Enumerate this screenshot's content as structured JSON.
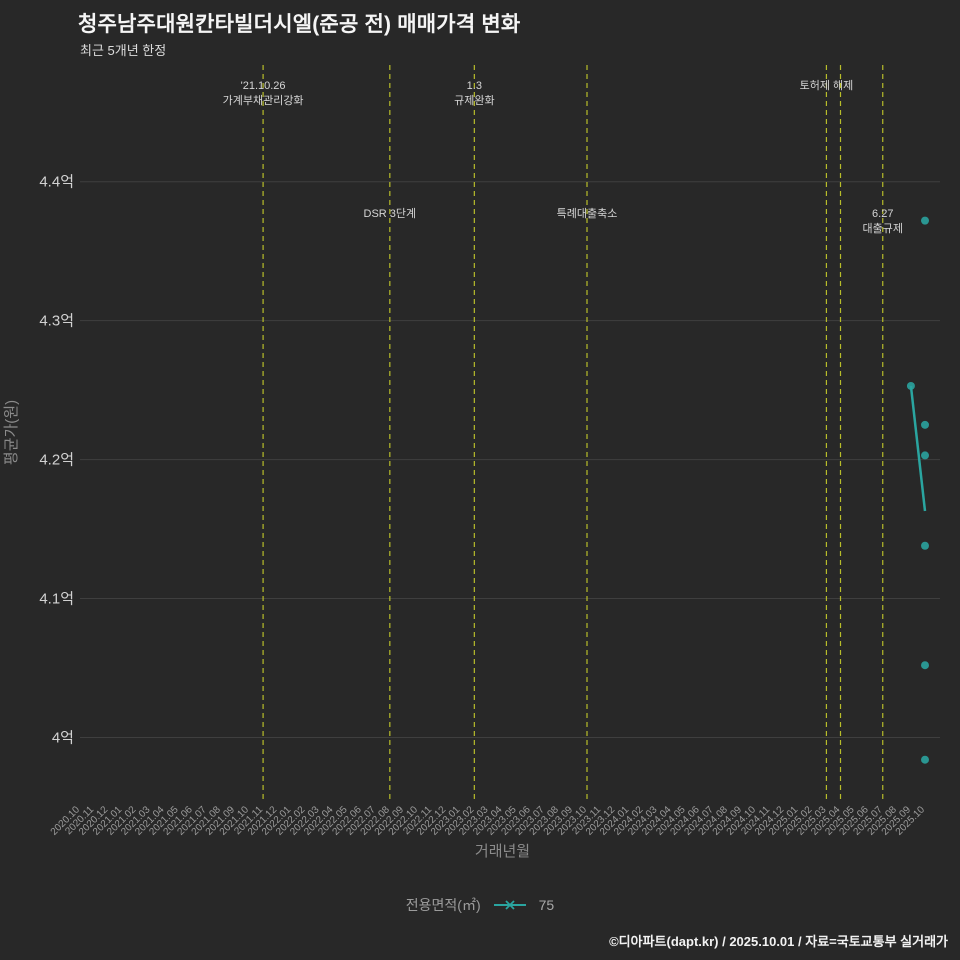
{
  "page": {
    "title": "청주남주대원칸타빌더시엘(준공 전) 매매가격 변화",
    "subtitle": "최근 5개년 한정",
    "footer": "©디아파트(dapt.kr) / 2025.10.01 / 자료=국토교통부 실거래가"
  },
  "legend": {
    "label": "전용면적(㎡)",
    "series_name": "75"
  },
  "colors": {
    "background": "#282828",
    "series": "#2aa5a0",
    "event_line": "#b8bd2a",
    "grid": "#3f3f3f",
    "tick": "#d2d2d2",
    "xtick": "#9c9c9c",
    "axis_label": "#8b8b8b",
    "annotation": "#d6d6d6"
  },
  "chart_data": {
    "type": "scatter",
    "title": "청주남주대원칸타빌더시엘(준공 전) 매매가격 변화",
    "subtitle": "최근 5개년 한정",
    "xlabel": "거래년월",
    "ylabel": "평균가(원)",
    "unit": "억",
    "ylim": [
      3.955,
      4.484
    ],
    "grid": "horizontal-only",
    "legend_position": "bottom-center",
    "yticks": [
      {
        "value": 4.4,
        "label": "4.4억"
      },
      {
        "value": 4.3,
        "label": "4.3억"
      },
      {
        "value": 4.2,
        "label": "4.2억"
      },
      {
        "value": 4.1,
        "label": "4.1억"
      },
      {
        "value": 4.0,
        "label": "4억"
      }
    ],
    "categories": [
      "2020.10",
      "2020.11",
      "2020.12",
      "2021.01",
      "2021.02",
      "2021.03",
      "2021.04",
      "2021.05",
      "2021.06",
      "2021.07",
      "2021.08",
      "2021.09",
      "2021.10",
      "2021.11",
      "2021.12",
      "2022.01",
      "2022.02",
      "2022.03",
      "2022.04",
      "2022.05",
      "2022.06",
      "2022.07",
      "2022.08",
      "2022.09",
      "2022.10",
      "2022.11",
      "2022.12",
      "2023.01",
      "2023.02",
      "2023.03",
      "2023.04",
      "2023.05",
      "2023.06",
      "2023.07",
      "2023.08",
      "2023.09",
      "2023.10",
      "2023.11",
      "2023.12",
      "2024.01",
      "2024.02",
      "2024.03",
      "2024.04",
      "2024.05",
      "2024.06",
      "2024.07",
      "2024.08",
      "2024.09",
      "2024.10",
      "2024.11",
      "2024.12",
      "2025.01",
      "2025.02",
      "2025.03",
      "2025.04",
      "2025.05",
      "2025.06",
      "2025.07",
      "2025.08",
      "2025.09",
      "2025.10"
    ],
    "series": [
      {
        "name": "75",
        "type": "scatter",
        "points": [
          [
            "2025.10",
            4.372
          ],
          [
            "2025.09",
            4.253
          ],
          [
            "2025.10",
            4.225
          ],
          [
            "2025.10",
            4.203
          ],
          [
            "2025.10",
            4.138
          ],
          [
            "2025.10",
            4.052
          ],
          [
            "2025.10",
            3.984
          ]
        ]
      },
      {
        "name": "75-trend",
        "type": "line",
        "points": [
          [
            "2025.09",
            4.253
          ],
          [
            "2025.10",
            4.163
          ]
        ]
      }
    ],
    "events": [
      {
        "month": "2021.11",
        "label_lines": [
          "'21.10.26",
          "가계부채관리강화"
        ],
        "label_position": "top"
      },
      {
        "month": "2022.08",
        "label_lines": [
          "DSR 3단계"
        ],
        "label_position": "mid"
      },
      {
        "month": "2023.02",
        "label_lines": [
          "1.3",
          "규제완화"
        ],
        "label_position": "top"
      },
      {
        "month": "2023.10",
        "label_lines": [
          "특례대출축소"
        ],
        "label_position": "mid"
      },
      {
        "month": "2025.03",
        "label_lines": [
          "토허제 해제"
        ],
        "label_position": "top"
      },
      {
        "month": "2025.04",
        "label_lines": [],
        "label_position": "none"
      },
      {
        "month": "2025.07",
        "label_lines": [
          "6.27",
          "대출규제"
        ],
        "label_position": "mid"
      }
    ]
  }
}
